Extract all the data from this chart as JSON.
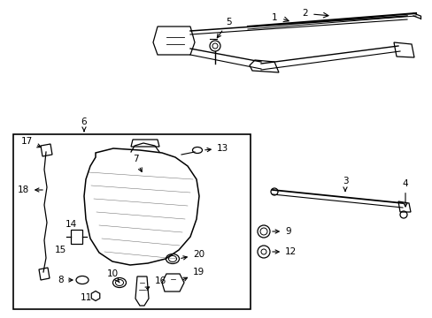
{
  "bg_color": "#ffffff",
  "line_color": "#000000",
  "label_fontsize": 7.5,
  "fig_width": 4.89,
  "fig_height": 3.6,
  "dpi": 100
}
